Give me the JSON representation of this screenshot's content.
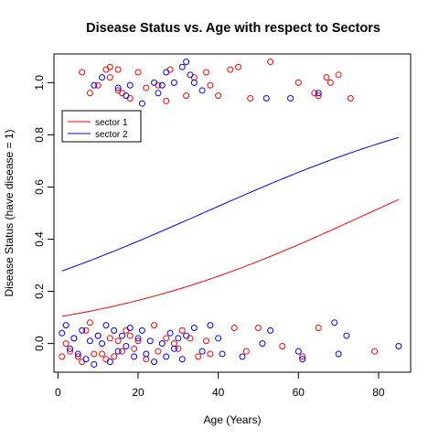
{
  "chart_data": {
    "type": "scatter",
    "title": "Disease Status vs. Age with respect to Sectors",
    "xlabel": "Age (Years)",
    "ylabel": "Disease Status (have disease = 1)",
    "xlim": [
      -1,
      88
    ],
    "ylim": [
      -0.11,
      1.11
    ],
    "xticks": [
      0,
      20,
      40,
      60,
      80
    ],
    "yticks": [
      0.0,
      0.2,
      0.4,
      0.6,
      0.8,
      1.0
    ],
    "xtick_labels": [
      "0",
      "20",
      "40",
      "60",
      "80"
    ],
    "ytick_labels": [
      "0.0",
      "0.2",
      "0.4",
      "0.6",
      "0.8",
      "1.0"
    ],
    "grid": false,
    "legend": {
      "placement": "top-left",
      "entries": [
        {
          "name": "sector 1",
          "color": "#ff0000"
        },
        {
          "name": "sector 2",
          "color": "#0000ff"
        }
      ]
    },
    "series": [
      {
        "name": "sector 1",
        "color": "#ff0000",
        "points": [
          [
            6,
            1.04
          ],
          [
            8,
            0.96
          ],
          [
            10,
            0.99
          ],
          [
            12,
            1.05
          ],
          [
            13,
            1.02
          ],
          [
            13,
            1.06
          ],
          [
            15,
            0.97
          ],
          [
            15,
            1.05
          ],
          [
            16,
            0.96
          ],
          [
            18,
            0.94
          ],
          [
            20,
            1.04
          ],
          [
            22,
            0.98
          ],
          [
            25,
            0.99
          ],
          [
            27,
            0.93
          ],
          [
            28,
            1.05
          ],
          [
            32,
            0.95
          ],
          [
            34,
            1.02
          ],
          [
            37,
            1.04
          ],
          [
            38,
            0.99
          ],
          [
            40,
            0.95
          ],
          [
            43,
            1.05
          ],
          [
            45,
            1.06
          ],
          [
            48,
            0.94
          ],
          [
            53,
            1.08
          ],
          [
            60,
            1.0
          ],
          [
            64,
            0.96
          ],
          [
            65,
            0.95
          ],
          [
            67,
            1.02
          ],
          [
            68,
            1.0
          ],
          [
            70,
            1.03
          ],
          [
            73,
            0.94
          ],
          [
            1,
            -0.05
          ],
          [
            2,
            0.0
          ],
          [
            3,
            -0.03
          ],
          [
            4,
            0.02
          ],
          [
            5,
            -0.05
          ],
          [
            6,
            -0.07
          ],
          [
            7,
            0.05
          ],
          [
            8,
            0.08
          ],
          [
            9,
            -0.04
          ],
          [
            10,
            0.03
          ],
          [
            11,
            -0.04
          ],
          [
            12,
            -0.06
          ],
          [
            13,
            0.02
          ],
          [
            14,
            -0.05
          ],
          [
            15,
            0.01
          ],
          [
            16,
            -0.03
          ],
          [
            17,
            0.05
          ],
          [
            18,
            0.03
          ],
          [
            19,
            -0.02
          ],
          [
            20,
            0.01
          ],
          [
            22,
            -0.06
          ],
          [
            24,
            0.07
          ],
          [
            25,
            -0.03
          ],
          [
            27,
            0.02
          ],
          [
            29,
            0.0
          ],
          [
            30,
            -0.02
          ],
          [
            31,
            0.05
          ],
          [
            33,
            0.02
          ],
          [
            35,
            -0.05
          ],
          [
            37,
            0.01
          ],
          [
            38,
            -0.04
          ],
          [
            44,
            0.06
          ],
          [
            47,
            -0.03
          ],
          [
            50,
            0.06
          ],
          [
            56,
            -0.01
          ],
          [
            61,
            -0.05
          ],
          [
            65,
            0.06
          ],
          [
            79,
            -0.03
          ]
        ]
      },
      {
        "name": "sector 2",
        "color": "#0000ff",
        "points": [
          [
            9,
            0.99
          ],
          [
            11,
            1.02
          ],
          [
            15,
            0.98
          ],
          [
            17,
            0.95
          ],
          [
            18,
            0.99
          ],
          [
            21,
            0.92
          ],
          [
            24,
            1.0
          ],
          [
            25,
            0.96
          ],
          [
            26,
            0.99
          ],
          [
            27,
            1.04
          ],
          [
            29,
            1.0
          ],
          [
            31,
            1.06
          ],
          [
            32,
            1.08
          ],
          [
            33,
            1.03
          ],
          [
            34,
            1.0
          ],
          [
            36,
            0.97
          ],
          [
            52,
            0.94
          ],
          [
            58,
            0.94
          ],
          [
            65,
            0.96
          ],
          [
            1,
            0.04
          ],
          [
            2,
            0.07
          ],
          [
            3,
            -0.02
          ],
          [
            4,
            0.02
          ],
          [
            5,
            -0.04
          ],
          [
            6,
            0.05
          ],
          [
            7,
            -0.06
          ],
          [
            8,
            0.01
          ],
          [
            9,
            -0.08
          ],
          [
            10,
            0.03
          ],
          [
            11,
            0.0
          ],
          [
            12,
            0.07
          ],
          [
            13,
            -0.07
          ],
          [
            14,
            0.05
          ],
          [
            15,
            -0.03
          ],
          [
            16,
            0.03
          ],
          [
            17,
            -0.01
          ],
          [
            18,
            0.06
          ],
          [
            19,
            -0.05
          ],
          [
            20,
            0.02
          ],
          [
            21,
            0.05
          ],
          [
            22,
            -0.04
          ],
          [
            23,
            0.01
          ],
          [
            24,
            -0.07
          ],
          [
            26,
            0.0
          ],
          [
            27,
            -0.05
          ],
          [
            28,
            0.04
          ],
          [
            29,
            -0.02
          ],
          [
            30,
            0.02
          ],
          [
            31,
            -0.06
          ],
          [
            32,
            0.03
          ],
          [
            34,
            0.06
          ],
          [
            36,
            -0.03
          ],
          [
            38,
            0.07
          ],
          [
            40,
            0.02
          ],
          [
            41,
            -0.04
          ],
          [
            46,
            -0.05
          ],
          [
            51,
            0.0
          ],
          [
            53,
            0.05
          ],
          [
            60,
            -0.03
          ],
          [
            61,
            -0.06
          ],
          [
            69,
            0.08
          ],
          [
            70,
            -0.04
          ],
          [
            72,
            0.03
          ],
          [
            85,
            -0.01
          ]
        ]
      }
    ],
    "fitted_lines": [
      {
        "name": "sector 1",
        "color": "#ff0000",
        "x": [
          1,
          85
        ],
        "intercept": -2.18,
        "slope": 0.0281
      },
      {
        "name": "sector 2",
        "color": "#0000ff",
        "x": [
          1,
          85
        ],
        "intercept": -0.98,
        "slope": 0.0271
      }
    ]
  }
}
